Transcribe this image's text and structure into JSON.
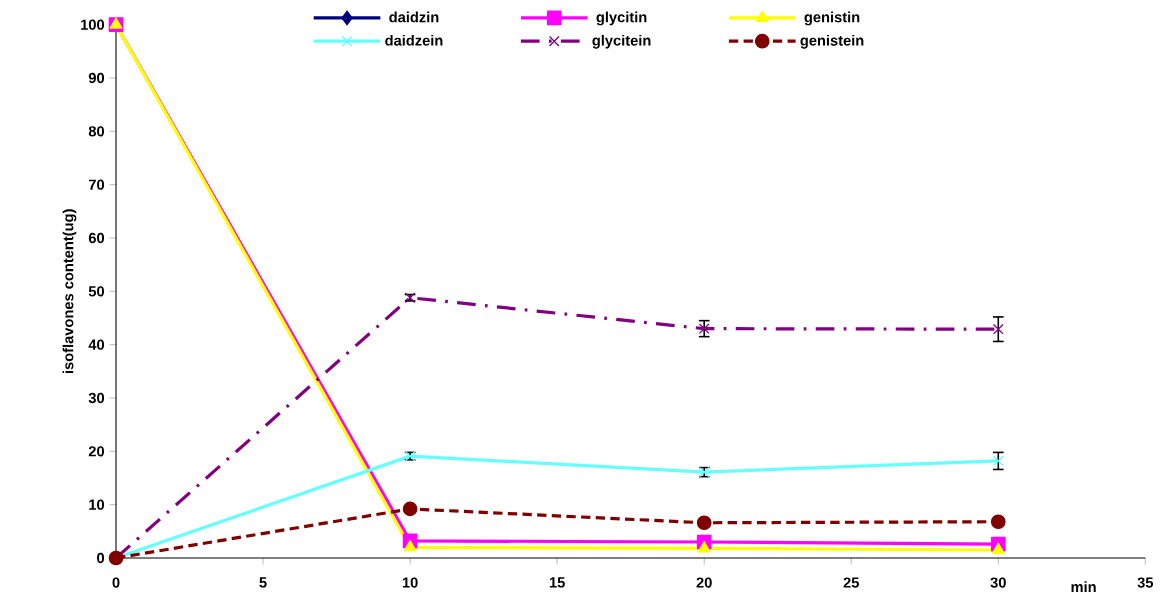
{
  "chart_data": {
    "type": "line",
    "xlabel": "min",
    "ylabel": "isoflavones content(ug)",
    "x": [
      0,
      10,
      20,
      30
    ],
    "series": [
      {
        "name": "daidzin",
        "color": "#000080",
        "marker": "diamond",
        "line_style": "solid",
        "values": [
          null,
          null,
          null,
          null
        ]
      },
      {
        "name": "glycitin",
        "color": "#ff00ff",
        "marker": "square",
        "line_style": "solid",
        "values": [
          100,
          3.2,
          3.0,
          2.6
        ]
      },
      {
        "name": "genistin",
        "color": "#ffff00",
        "marker": "triangle",
        "line_style": "solid",
        "values": [
          100,
          2.0,
          1.8,
          1.5
        ]
      },
      {
        "name": "daidzein",
        "color": "#66ffff",
        "marker": "cross",
        "line_style": "solid",
        "values": [
          0,
          19.1,
          16.1,
          18.2
        ],
        "errors": [
          null,
          0.7,
          0.85,
          1.6
        ]
      },
      {
        "name": "glycitein",
        "color": "#800080",
        "marker": "cross",
        "line_style": "dashdot",
        "values": [
          0,
          48.8,
          43.0,
          42.9
        ],
        "errors": [
          null,
          0.6,
          1.5,
          2.3
        ]
      },
      {
        "name": "genistein",
        "color": "#800000",
        "marker": "circle",
        "line_style": "dashed",
        "values": [
          0,
          9.2,
          6.6,
          6.8
        ]
      }
    ],
    "xlim": [
      0,
      35
    ],
    "xticks": [
      0,
      5,
      10,
      15,
      20,
      25,
      30,
      35
    ],
    "ylim": [
      0,
      100
    ],
    "yticks": [
      0,
      10,
      20,
      30,
      40,
      50,
      60,
      70,
      80,
      90,
      100
    ],
    "grid": false,
    "legend": "top"
  }
}
